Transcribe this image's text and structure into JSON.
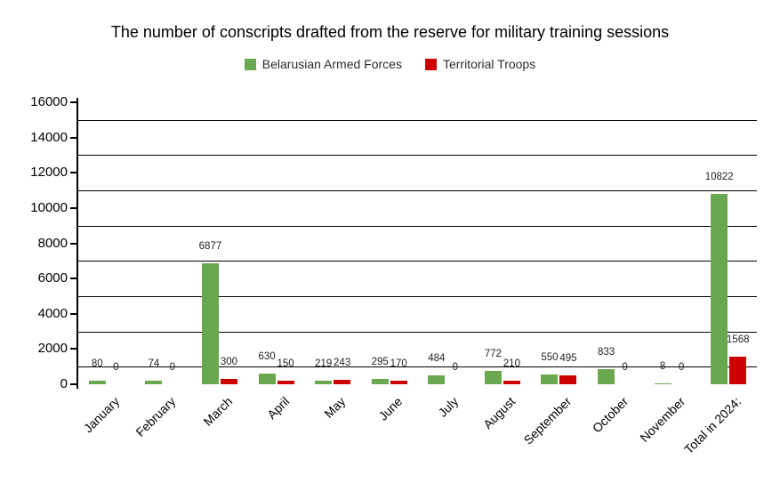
{
  "title": "The number of conscripts drafted from the reserve for military training sessions",
  "chart_data": {
    "type": "bar",
    "title": "The number of conscripts drafted from the reserve for military training sessions",
    "xlabel": "",
    "ylabel": "",
    "grid": true,
    "legend_position": "top",
    "categories": [
      "January",
      "February",
      "March",
      "April",
      "May",
      "June",
      "July",
      "August",
      "September",
      "October",
      "November",
      "Total in 2024:"
    ],
    "series": [
      {
        "name": "Belarusian Armed Forces",
        "color": "#6aa84f",
        "values": [
          80,
          74,
          6877,
          630,
          219,
          295,
          484,
          772,
          550,
          833,
          8,
          10822
        ]
      },
      {
        "name": "Territorial Troops",
        "color": "#cc0000",
        "values": [
          0,
          0,
          300,
          150,
          243,
          170,
          0,
          210,
          495,
          0,
          0,
          1568
        ]
      }
    ],
    "y_axis": {
      "min": 0,
      "max": 16000,
      "tick_step": 2000,
      "tick_labels": [
        "0",
        "2000",
        "4000",
        "6000",
        "8000",
        "10000",
        "12000",
        "14000",
        "16000"
      ],
      "gridlines_at": [
        1000,
        3000,
        5000,
        7000,
        9000,
        11000,
        13000,
        15000
      ]
    }
  }
}
